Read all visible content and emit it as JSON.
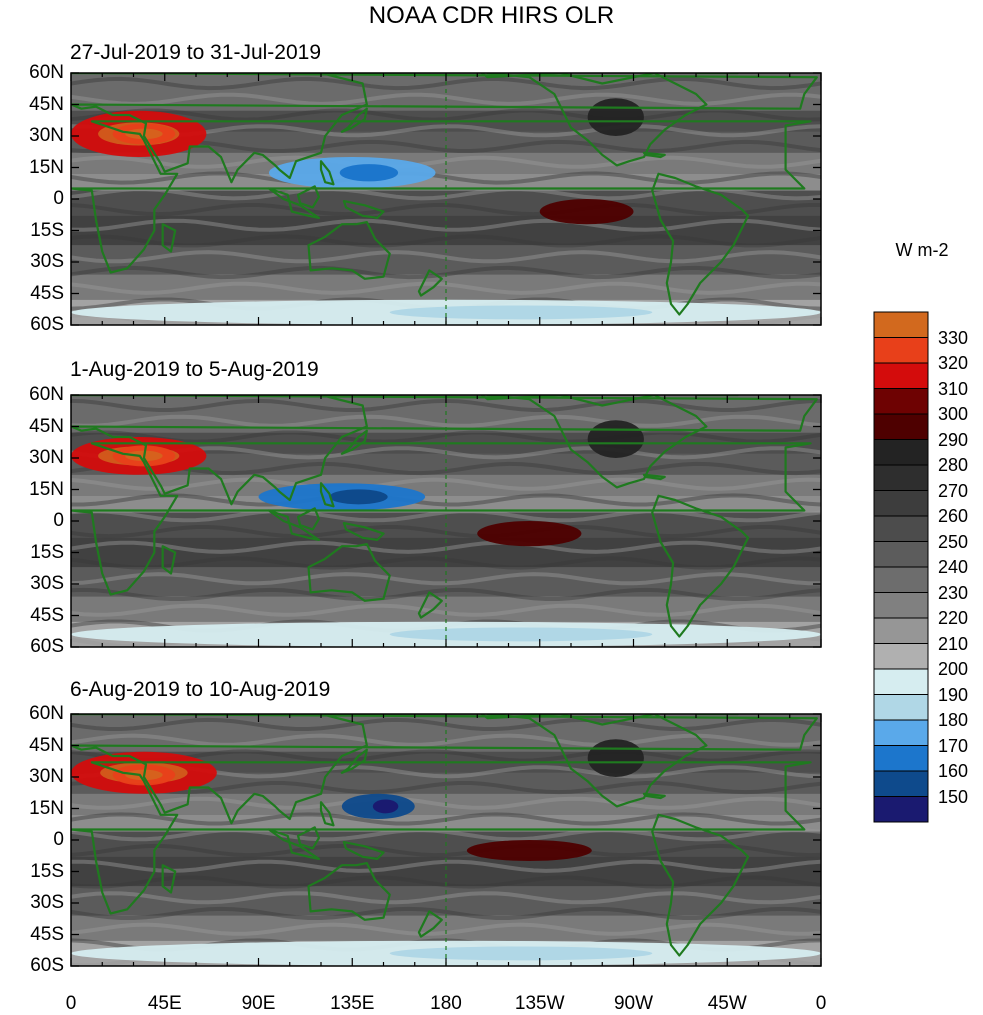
{
  "title": "NOAA CDR HIRS OLR",
  "units": "W m-2",
  "panels": [
    {
      "title": "27-Jul-2019 to 31-Jul-2019"
    },
    {
      "title": "1-Aug-2019 to 5-Aug-2019"
    },
    {
      "title": "6-Aug-2019 to 10-Aug-2019"
    }
  ],
  "lat_ticks": [
    "60N",
    "45N",
    "30N",
    "15N",
    "0",
    "15S",
    "30S",
    "45S",
    "60S"
  ],
  "lon_ticks": [
    "0",
    "45E",
    "90E",
    "135E",
    "180",
    "135W",
    "90W",
    "45W",
    "0"
  ],
  "colorbar": {
    "levels": [
      330,
      320,
      310,
      300,
      290,
      280,
      270,
      260,
      250,
      240,
      230,
      220,
      210,
      200,
      190,
      180,
      170,
      160,
      150
    ],
    "labels": [
      "330",
      "320",
      "310",
      "300",
      "290",
      "280",
      "270",
      "260",
      "250",
      "240",
      "230",
      "220",
      "210",
      "200",
      "190",
      "180",
      "170",
      "160",
      "150"
    ],
    "colors": [
      "#d2691e",
      "#e8401a",
      "#d40c0c",
      "#6e0202",
      "#4e0000",
      "#232323",
      "#2e2e2e",
      "#3d3d3d",
      "#4c4c4c",
      "#5c5c5c",
      "#6d6d6d",
      "#808080",
      "#969696",
      "#b0b0b0",
      "#d6edf0",
      "#b0d7e6",
      "#5aa9ea",
      "#1c76cc",
      "#0e4a8c",
      "#1a1a70"
    ]
  },
  "chart_data": [
    {
      "type": "heatmap",
      "title": "27-Jul-2019 to 31-Jul-2019",
      "ylim": [
        -60,
        60
      ],
      "xlim": [
        0,
        360
      ],
      "features": [
        {
          "lon": [
            0,
            65
          ],
          "lat": [
            20,
            42
          ],
          "value": 318
        },
        {
          "lon": [
            20,
            50
          ],
          "lat": [
            26,
            36
          ],
          "value": 325
        },
        {
          "lon": [
            225,
            270
          ],
          "lat": [
            -12,
            0
          ],
          "value": 295
        },
        {
          "lon": [
            95,
            175
          ],
          "lat": [
            5,
            20
          ],
          "value": 175
        },
        {
          "lon": [
            248,
            275
          ],
          "lat": [
            30,
            48
          ],
          "value": 285
        },
        {
          "lon": [
            0,
            360
          ],
          "lat": [
            -60,
            -48
          ],
          "value": 195
        }
      ]
    },
    {
      "type": "heatmap",
      "title": "1-Aug-2019 to 5-Aug-2019",
      "ylim": [
        -60,
        60
      ],
      "xlim": [
        0,
        360
      ],
      "features": [
        {
          "lon": [
            0,
            65
          ],
          "lat": [
            22,
            40
          ],
          "value": 318
        },
        {
          "lon": [
            20,
            50
          ],
          "lat": [
            26,
            36
          ],
          "value": 325
        },
        {
          "lon": [
            195,
            245
          ],
          "lat": [
            -12,
            0
          ],
          "value": 295
        },
        {
          "lon": [
            90,
            170
          ],
          "lat": [
            5,
            18
          ],
          "value": 165
        },
        {
          "lon": [
            248,
            275
          ],
          "lat": [
            30,
            48
          ],
          "value": 285
        },
        {
          "lon": [
            0,
            360
          ],
          "lat": [
            -60,
            -48
          ],
          "value": 195
        }
      ]
    },
    {
      "type": "heatmap",
      "title": "6-Aug-2019 to 10-Aug-2019",
      "ylim": [
        -60,
        60
      ],
      "xlim": [
        0,
        360
      ],
      "features": [
        {
          "lon": [
            0,
            70
          ],
          "lat": [
            22,
            42
          ],
          "value": 318
        },
        {
          "lon": [
            20,
            50
          ],
          "lat": [
            26,
            36
          ],
          "value": 325
        },
        {
          "lon": [
            190,
            250
          ],
          "lat": [
            -10,
            0
          ],
          "value": 295
        },
        {
          "lon": [
            130,
            165
          ],
          "lat": [
            10,
            22
          ],
          "value": 155
        },
        {
          "lon": [
            248,
            275
          ],
          "lat": [
            30,
            48
          ],
          "value": 285
        },
        {
          "lon": [
            0,
            360
          ],
          "lat": [
            -60,
            -48
          ],
          "value": 195
        }
      ]
    }
  ]
}
